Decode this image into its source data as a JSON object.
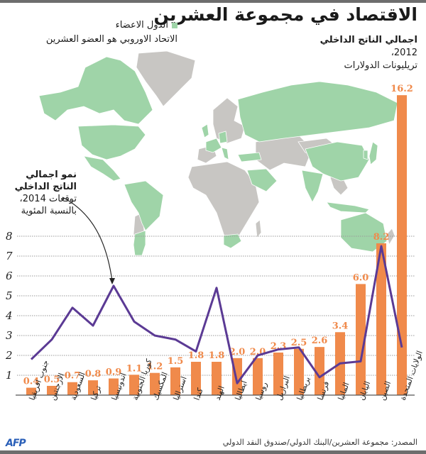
{
  "header": {
    "title": "الاقتصاد في مجموعة العشرين"
  },
  "legend": {
    "member_label": "الدول الاعضاء",
    "eu_note": "الاتحاد الاوروبي هو العضو العشرين",
    "member_color": "#9fd4a8",
    "nonmember_color": "#c8c6c3"
  },
  "gdp_label": {
    "line1": "اجمالي الناتج الداخلي",
    "line2": "2012،",
    "line3": "تريليونات الدولارات"
  },
  "growth_label": {
    "line1": "نمو اجمالي الناتج الداخلي",
    "line2": "توقعات 2014،",
    "line3": "بالنسبة المئوية"
  },
  "footer": {
    "source": "المصدر: مجموعة العشرين/البنك الدولي/صندوق النقد الدولي",
    "logo": "AFP"
  },
  "colors": {
    "bar": "#f08a4b",
    "line": "#5b3a94",
    "grid": "#9a9a9a"
  },
  "chart_data": {
    "type": "bar+line",
    "title": "الاقتصاد في مجموعة العشرين",
    "categories": [
      "جنوب افريقيا",
      "الارجنتين",
      "السعودية",
      "تركيا",
      "اندونيسيا",
      "كوريا الجنوبية",
      "المكسيك",
      "استراليا",
      "كندا",
      "الهند",
      "ايطاليا",
      "روسيا",
      "البرازيل",
      "بريطانيا",
      "فرنسا",
      "المانيا",
      "اليابان",
      "الصين",
      "الولايات المتحدة"
    ],
    "series": [
      {
        "name": "اجمالي الناتج الداخلي 2012، تريليونات الدولارات",
        "type": "bar",
        "values": [
          0.4,
          0.5,
          0.7,
          0.8,
          0.9,
          1.1,
          1.2,
          1.5,
          1.8,
          1.8,
          2.0,
          2.0,
          2.3,
          2.5,
          2.6,
          3.4,
          6.0,
          8.2,
          16.2
        ],
        "labels": [
          "0.4",
          "0.5",
          "0.7",
          "0.8",
          "0.9",
          "1.1",
          "1.2",
          "1.5",
          "1.8",
          "1.8",
          "2.0",
          "2.0",
          "2.3",
          "2.5",
          "2.6",
          "3.4",
          "6.0",
          "8.2",
          "16.2"
        ]
      },
      {
        "name": "نمو اجمالي الناتج الداخلي توقعات 2014، بالنسبة المئوية",
        "type": "line",
        "values": [
          1.8,
          2.8,
          4.4,
          3.5,
          5.5,
          3.7,
          3.0,
          2.8,
          2.2,
          5.4,
          0.6,
          2.0,
          2.3,
          2.4,
          0.9,
          1.6,
          1.7,
          7.5,
          2.4
        ]
      }
    ],
    "yticks": [
      "1",
      "2",
      "3",
      "4",
      "5",
      "6",
      "7",
      "8"
    ],
    "ylim": [
      0,
      8
    ],
    "grid": true,
    "legend_position": "top"
  }
}
